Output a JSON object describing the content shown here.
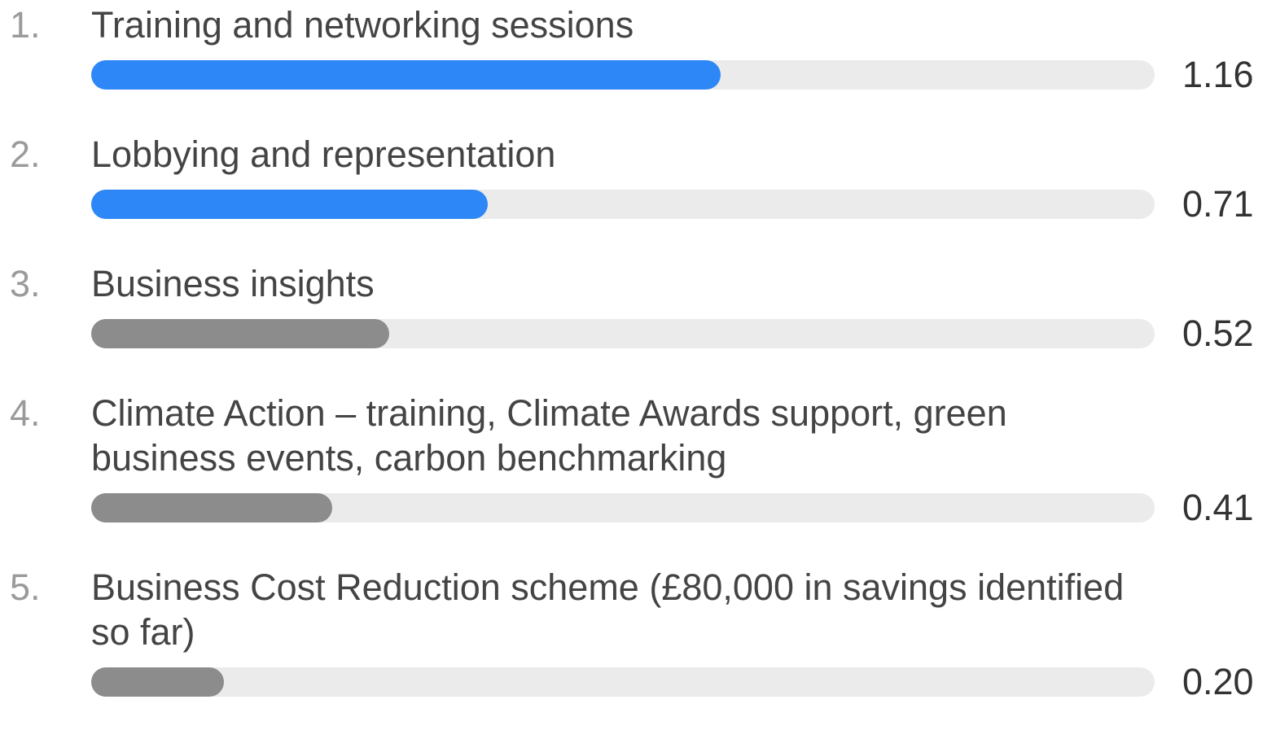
{
  "chart_data": {
    "type": "bar",
    "orientation": "horizontal",
    "ranks": [
      "1.",
      "2.",
      "3.",
      "4.",
      "5."
    ],
    "categories": [
      "Training and networking sessions",
      "Lobbying and representation",
      "Business insights",
      "Climate Action – training, Climate Awards support, green business events, carbon benchmarking",
      "Business Cost Reduction scheme (£80,000 in savings identified so far)"
    ],
    "values": [
      1.16,
      0.71,
      0.52,
      0.41,
      0.2
    ],
    "value_labels": [
      "1.16",
      "0.71",
      "0.52",
      "0.41",
      "0.20"
    ],
    "colors": [
      "#2d87f6",
      "#2d87f6",
      "#8c8c8c",
      "#8c8c8c",
      "#8c8c8c"
    ],
    "xlim": [
      0,
      2
    ]
  }
}
